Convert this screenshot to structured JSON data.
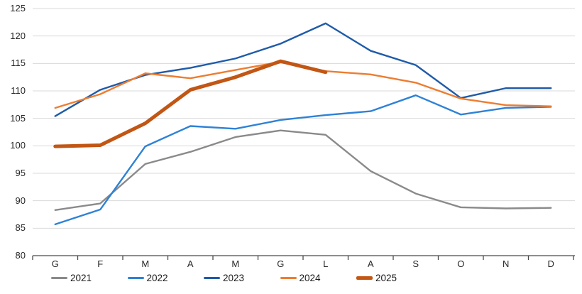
{
  "chart_data": {
    "type": "line",
    "title": "",
    "xlabel": "",
    "ylabel": "",
    "categories": [
      "G",
      "F",
      "M",
      "A",
      "M",
      "G",
      "L",
      "A",
      "S",
      "O",
      "N",
      "D"
    ],
    "y_tick_labels": [
      "80",
      "85",
      "90",
      "95",
      "100",
      "105",
      "110",
      "115",
      "120",
      "125"
    ],
    "ylim": [
      80,
      125
    ],
    "ytick_step": 5,
    "grid": true,
    "legend_position": "bottom",
    "series": [
      {
        "name": "2021",
        "color": "#8A8A8A",
        "thickness": "thin",
        "values": [
          88.3,
          89.5,
          96.7,
          98.9,
          101.6,
          102.8,
          102.0,
          95.4,
          91.3,
          88.8,
          88.6,
          88.7
        ]
      },
      {
        "name": "2022",
        "color": "#2E82D6",
        "thickness": "thin",
        "values": [
          85.7,
          88.4,
          99.9,
          103.6,
          103.1,
          104.7,
          105.6,
          106.3,
          109.2,
          105.7,
          106.9,
          107.1
        ]
      },
      {
        "name": "2023",
        "color": "#1F5BA8",
        "thickness": "thin",
        "values": [
          105.4,
          110.2,
          112.9,
          114.2,
          115.9,
          118.6,
          122.3,
          117.3,
          114.7,
          108.7,
          110.5,
          110.5
        ]
      },
      {
        "name": "2024",
        "color": "#ED7D31",
        "thickness": "thin",
        "values": [
          106.9,
          109.4,
          113.2,
          112.3,
          113.8,
          115.3,
          113.6,
          113.0,
          111.5,
          108.6,
          107.4,
          107.2
        ]
      },
      {
        "name": "2025",
        "color": "#C25614",
        "thickness": "thick",
        "values": [
          99.9,
          100.1,
          104.1,
          110.2,
          112.5,
          115.4,
          113.4
        ]
      }
    ]
  },
  "style_colors": {
    "gridline": "#D9D9D9",
    "axis": "#4a4a4a",
    "tick_text": "#262626"
  }
}
